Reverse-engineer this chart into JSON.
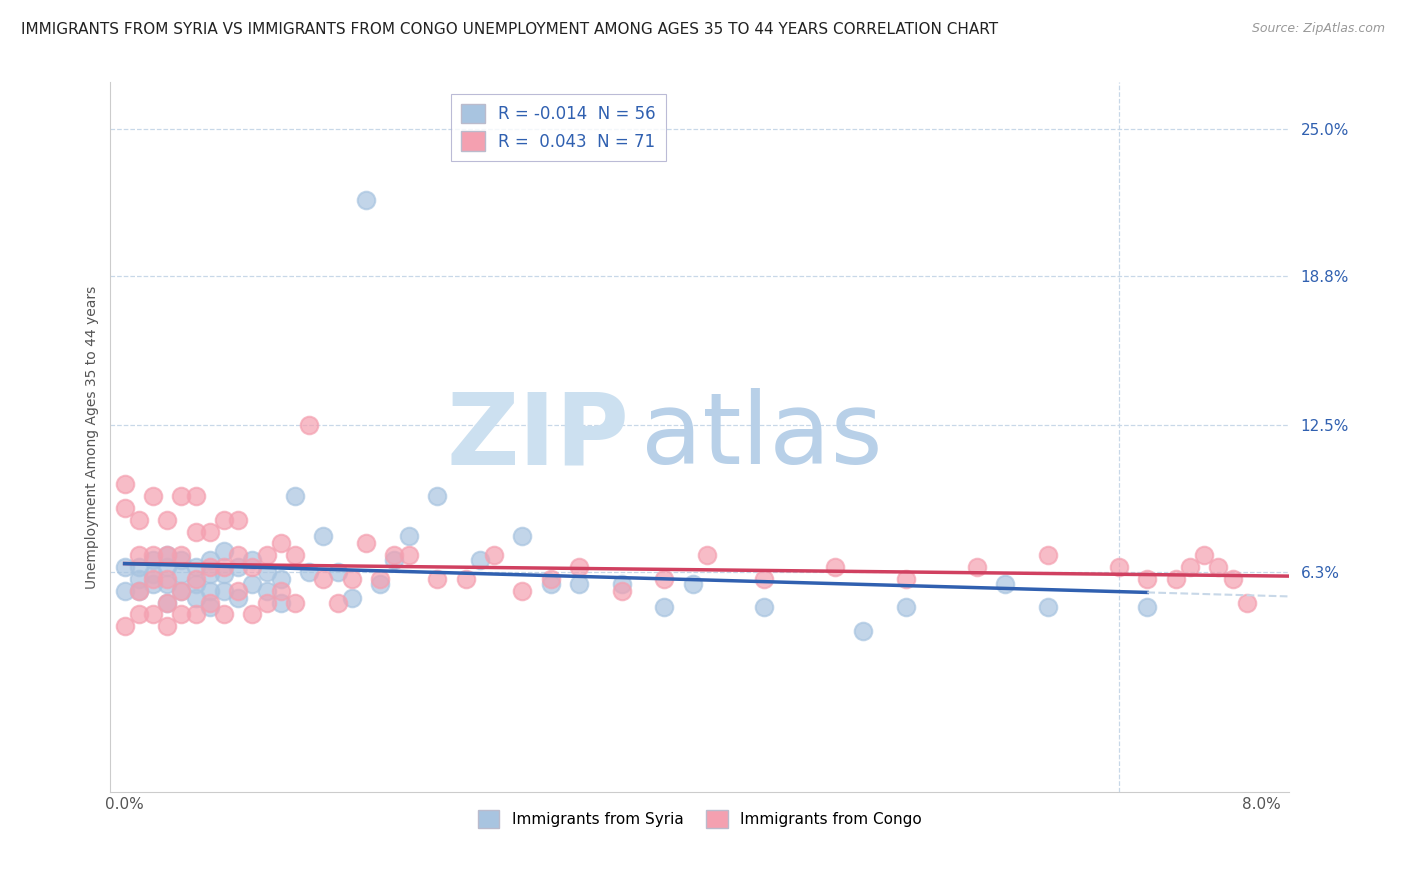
{
  "title": "IMMIGRANTS FROM SYRIA VS IMMIGRANTS FROM CONGO UNEMPLOYMENT AMONG AGES 35 TO 44 YEARS CORRELATION CHART",
  "source": "Source: ZipAtlas.com",
  "ylabel": "Unemployment Among Ages 35 to 44 years",
  "legend_label_syria": "Immigrants from Syria",
  "legend_label_congo": "Immigrants from Congo",
  "legend_r_syria": "R = -0.014",
  "legend_n_syria": "N = 56",
  "legend_r_congo": "R =  0.043",
  "legend_n_congo": "N = 71",
  "r_syria": -0.014,
  "r_congo": 0.043,
  "n_syria": 56,
  "n_congo": 71,
  "xlim": [
    -0.001,
    0.082
  ],
  "ylim": [
    -0.03,
    0.27
  ],
  "yticks": [
    0.063,
    0.125,
    0.188,
    0.25
  ],
  "ytick_labels": [
    "6.3%",
    "12.5%",
    "18.8%",
    "25.0%"
  ],
  "xticks": [
    0.0,
    0.08
  ],
  "xtick_labels": [
    "0.0%",
    "8.0%"
  ],
  "color_syria": "#a8c4e0",
  "color_congo": "#f4a0b0",
  "trendline_color_syria": "#3060b0",
  "trendline_color_congo": "#d04060",
  "watermark_zip": "ZIP",
  "watermark_atlas": "atlas",
  "watermark_color_zip": "#c8ddf0",
  "watermark_color_atlas": "#b8d4e8",
  "background_color": "#ffffff",
  "grid_color": "#c8d8e8",
  "title_fontsize": 11,
  "axis_label_fontsize": 10,
  "tick_fontsize": 11,
  "syria_x": [
    0.0,
    0.0,
    0.001,
    0.001,
    0.001,
    0.002,
    0.002,
    0.002,
    0.003,
    0.003,
    0.003,
    0.003,
    0.004,
    0.004,
    0.004,
    0.005,
    0.005,
    0.005,
    0.006,
    0.006,
    0.006,
    0.006,
    0.007,
    0.007,
    0.007,
    0.008,
    0.008,
    0.009,
    0.009,
    0.01,
    0.01,
    0.011,
    0.011,
    0.012,
    0.013,
    0.014,
    0.015,
    0.016,
    0.017,
    0.018,
    0.019,
    0.02,
    0.022,
    0.025,
    0.028,
    0.03,
    0.032,
    0.035,
    0.038,
    0.04,
    0.045,
    0.052,
    0.055,
    0.062,
    0.065,
    0.072
  ],
  "syria_y": [
    0.055,
    0.065,
    0.06,
    0.065,
    0.055,
    0.058,
    0.062,
    0.068,
    0.05,
    0.058,
    0.065,
    0.07,
    0.055,
    0.062,
    0.068,
    0.052,
    0.058,
    0.065,
    0.048,
    0.055,
    0.062,
    0.068,
    0.055,
    0.062,
    0.072,
    0.052,
    0.065,
    0.058,
    0.068,
    0.055,
    0.063,
    0.05,
    0.06,
    0.095,
    0.063,
    0.078,
    0.063,
    0.052,
    0.22,
    0.058,
    0.068,
    0.078,
    0.095,
    0.068,
    0.078,
    0.058,
    0.058,
    0.058,
    0.048,
    0.058,
    0.048,
    0.038,
    0.048,
    0.058,
    0.048,
    0.048
  ],
  "congo_x": [
    0.0,
    0.0,
    0.0,
    0.001,
    0.001,
    0.001,
    0.001,
    0.002,
    0.002,
    0.002,
    0.002,
    0.003,
    0.003,
    0.003,
    0.003,
    0.003,
    0.004,
    0.004,
    0.004,
    0.004,
    0.005,
    0.005,
    0.005,
    0.005,
    0.006,
    0.006,
    0.006,
    0.007,
    0.007,
    0.007,
    0.008,
    0.008,
    0.008,
    0.009,
    0.009,
    0.01,
    0.01,
    0.011,
    0.011,
    0.012,
    0.012,
    0.013,
    0.014,
    0.015,
    0.016,
    0.017,
    0.018,
    0.019,
    0.02,
    0.022,
    0.024,
    0.026,
    0.028,
    0.03,
    0.032,
    0.035,
    0.038,
    0.041,
    0.045,
    0.05,
    0.055,
    0.06,
    0.065,
    0.07,
    0.072,
    0.074,
    0.075,
    0.076,
    0.077,
    0.078,
    0.079
  ],
  "congo_y": [
    0.04,
    0.09,
    0.1,
    0.045,
    0.055,
    0.07,
    0.085,
    0.045,
    0.06,
    0.07,
    0.095,
    0.04,
    0.05,
    0.06,
    0.07,
    0.085,
    0.045,
    0.055,
    0.07,
    0.095,
    0.045,
    0.06,
    0.08,
    0.095,
    0.05,
    0.065,
    0.08,
    0.045,
    0.065,
    0.085,
    0.055,
    0.07,
    0.085,
    0.045,
    0.065,
    0.05,
    0.07,
    0.055,
    0.075,
    0.05,
    0.07,
    0.125,
    0.06,
    0.05,
    0.06,
    0.075,
    0.06,
    0.07,
    0.07,
    0.06,
    0.06,
    0.07,
    0.055,
    0.06,
    0.065,
    0.055,
    0.06,
    0.07,
    0.06,
    0.065,
    0.06,
    0.065,
    0.07,
    0.065,
    0.06,
    0.06,
    0.065,
    0.07,
    0.065,
    0.06,
    0.05
  ]
}
